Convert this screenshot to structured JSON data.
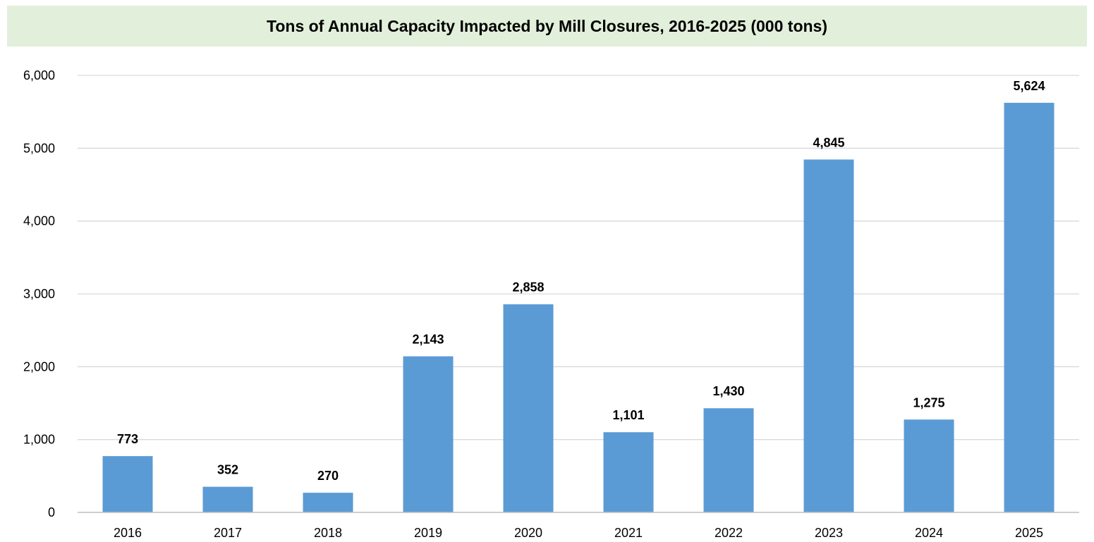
{
  "chart_data": {
    "type": "bar",
    "title": "Tons of Annual Capacity Impacted by Mill Closures, 2016-2025 (000 tons)",
    "xlabel": "",
    "ylabel": "",
    "categories": [
      "2016",
      "2017",
      "2018",
      "2019",
      "2020",
      "2021",
      "2022",
      "2023",
      "2024",
      "2025"
    ],
    "values": [
      773,
      352,
      270,
      2143,
      2858,
      1101,
      1430,
      4845,
      1275,
      5624
    ],
    "data_labels": [
      "773",
      "352",
      "270",
      "2,143",
      "2,858",
      "1,101",
      "1,430",
      "4,845",
      "1,275",
      "5,624"
    ],
    "ylim": [
      0,
      6000
    ],
    "yticks": [
      0,
      1000,
      2000,
      3000,
      4000,
      5000,
      6000
    ],
    "ytick_labels": [
      "0",
      "1,000",
      "2,000",
      "3,000",
      "4,000",
      "5,000",
      "6,000"
    ],
    "grid": true,
    "legend": "none",
    "colors": {
      "bar": "#5b9bd5",
      "grid": "#d9d9d9",
      "axis": "#bfbfbf",
      "title_bg": "#e2efda"
    }
  }
}
